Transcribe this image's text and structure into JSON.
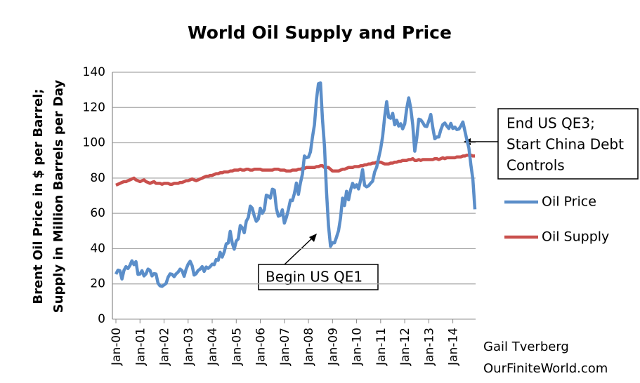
{
  "chart_data": {
    "type": "line",
    "title": "World Oil Supply and Price",
    "y_label": [
      "Brent Oil Price in $ per Barrel;",
      "Supply in Million Barrels per Day"
    ],
    "categories": [
      "Jan-00",
      null,
      null,
      null,
      null,
      null,
      null,
      null,
      null,
      null,
      null,
      null,
      "Jan-01",
      null,
      null,
      null,
      null,
      null,
      null,
      null,
      null,
      null,
      null,
      null,
      "Jan-02",
      null,
      null,
      null,
      null,
      null,
      null,
      null,
      null,
      null,
      null,
      null,
      "Jan-03",
      null,
      null,
      null,
      null,
      null,
      null,
      null,
      null,
      null,
      null,
      null,
      "Jan-04",
      null,
      null,
      null,
      null,
      null,
      null,
      null,
      null,
      null,
      null,
      null,
      "Jan-05",
      null,
      null,
      null,
      null,
      null,
      null,
      null,
      null,
      null,
      null,
      null,
      "Jan-06",
      null,
      null,
      null,
      null,
      null,
      null,
      null,
      null,
      null,
      null,
      null,
      "Jan-07",
      null,
      null,
      null,
      null,
      null,
      null,
      null,
      null,
      null,
      null,
      null,
      "Jan-08",
      null,
      null,
      null,
      null,
      null,
      null,
      null,
      null,
      null,
      null,
      null,
      "Jan-09",
      null,
      null,
      null,
      null,
      null,
      null,
      null,
      null,
      null,
      null,
      null,
      "Jan-10",
      null,
      null,
      null,
      null,
      null,
      null,
      null,
      null,
      null,
      null,
      null,
      "Jan-11",
      null,
      null,
      null,
      null,
      null,
      null,
      null,
      null,
      null,
      null,
      null,
      "Jan-12",
      null,
      null,
      null,
      null,
      null,
      null,
      null,
      null,
      null,
      null,
      null,
      "Jan-13",
      null,
      null,
      null,
      null,
      null,
      null,
      null,
      null,
      null,
      null,
      null,
      "Jan-14",
      null,
      null,
      null,
      null,
      null,
      null,
      null,
      null,
      null,
      null,
      null
    ],
    "series": [
      {
        "name": "Oil Price",
        "color": "#5b8ec9",
        "values": [
          25.5,
          27.8,
          27.5,
          22.8,
          27.6,
          29.8,
          28.7,
          30.5,
          33.1,
          30.9,
          32.6,
          25.4,
          25.6,
          27.5,
          24.5,
          25.7,
          28.4,
          27.7,
          24.5,
          25.8,
          25.6,
          20.5,
          18.9,
          18.6,
          19.4,
          20.3,
          23.7,
          25.7,
          25.4,
          24.1,
          25.7,
          26.7,
          28.4,
          27.5,
          24.3,
          28.3,
          31.2,
          32.8,
          30.3,
          25.0,
          25.8,
          27.6,
          28.4,
          29.8,
          27.1,
          29.6,
          28.8,
          29.8,
          31.2,
          30.9,
          33.8,
          33.4,
          37.9,
          35.2,
          38.2,
          42.7,
          43.2,
          49.8,
          43.1,
          39.7,
          44.3,
          45.5,
          53.1,
          51.9,
          49.0,
          55.6,
          57.6,
          64.1,
          62.9,
          58.5,
          55.5,
          56.8,
          62.9,
          60.0,
          62.1,
          70.3,
          69.8,
          68.6,
          73.7,
          73.2,
          62.8,
          58.4,
          58.9,
          62.0,
          54.5,
          57.8,
          62.1,
          67.5,
          67.2,
          71.3,
          77.2,
          70.8,
          77.1,
          82.3,
          92.5,
          91.5,
          91.9,
          94.8,
          103.3,
          110.2,
          124.6,
          133.5,
          133.9,
          113.4,
          98.0,
          72.7,
          53.0,
          41.3,
          43.4,
          43.3,
          46.5,
          50.2,
          57.3,
          68.6,
          64.4,
          72.5,
          67.7,
          73.2,
          77.0,
          74.7,
          76.2,
          73.8,
          78.8,
          84.8,
          75.9,
          75.0,
          75.6,
          77.1,
          78.2,
          83.5,
          86.1,
          91.4,
          96.5,
          103.7,
          114.6,
          123.3,
          114.5,
          113.9,
          116.7,
          110.2,
          112.8,
          109.5,
          110.8,
          107.9,
          110.7,
          119.3,
          125.5,
          119.8,
          110.3,
          95.2,
          102.6,
          113.4,
          113.0,
          111.5,
          109.5,
          109.2,
          112.3,
          116.1,
          108.5,
          102.3,
          103.3,
          103.3,
          107.4,
          110.3,
          111.2,
          109.5,
          108.1,
          111.0,
          108.1,
          108.9,
          107.5,
          107.8,
          109.5,
          111.8,
          106.8,
          101.6,
          97.1,
          87.4,
          79.4,
          62.3
        ]
      },
      {
        "name": "Oil Supply",
        "color": "#c9504d",
        "values": [
          76,
          76.5,
          77,
          77.5,
          78,
          78,
          78.5,
          79,
          79.5,
          80,
          79,
          78.5,
          78,
          78.5,
          79,
          78,
          77.5,
          77,
          77.5,
          78,
          77,
          77,
          77,
          76.5,
          77,
          77,
          77,
          76.5,
          76.5,
          77,
          77,
          77,
          77.5,
          77.5,
          78,
          78.5,
          78.5,
          79,
          79.5,
          79,
          78.5,
          79,
          79.5,
          80,
          80.5,
          81,
          81,
          81.5,
          81.5,
          82,
          82.5,
          82.5,
          83,
          83,
          83.5,
          83.5,
          83.5,
          84,
          84,
          84.5,
          84.5,
          84.5,
          85,
          84.5,
          84.5,
          85,
          85,
          84.5,
          84.5,
          85,
          85,
          85,
          85,
          84.5,
          84.5,
          84.5,
          84.5,
          84.5,
          84.5,
          85,
          85,
          85,
          84.5,
          84.5,
          84.5,
          84,
          84,
          84,
          84.5,
          84.5,
          84.5,
          85,
          85,
          85.5,
          85.5,
          86,
          86,
          86,
          86,
          86,
          86.5,
          86.5,
          87,
          87,
          86,
          86,
          86,
          85,
          84,
          84,
          84,
          84,
          84.5,
          85,
          85,
          85.5,
          86,
          86,
          86,
          86.5,
          86.5,
          86.5,
          87,
          87,
          87.5,
          87.5,
          88,
          88,
          88.5,
          88.5,
          89,
          89,
          89,
          88.5,
          88,
          88,
          88,
          88.5,
          88.5,
          89,
          89,
          89.5,
          89.5,
          90,
          90,
          90,
          90.5,
          90.5,
          91,
          90,
          90,
          90.5,
          90,
          90.5,
          90.5,
          90.5,
          90.5,
          90.5,
          90.5,
          91,
          91,
          90.5,
          91,
          91.5,
          91,
          91.5,
          91.5,
          91.5,
          91.5,
          91.5,
          92,
          92,
          92,
          92.5,
          92.5,
          93,
          93,
          93,
          92.5,
          92.5
        ]
      }
    ],
    "ylim": [
      0,
      140
    ],
    "yticks": [
      0,
      20,
      40,
      60,
      80,
      100,
      120,
      140
    ],
    "grid": true,
    "annotations": [
      {
        "lines": [
          "End US QE3;",
          "Start China Debt",
          "Controls"
        ]
      },
      {
        "lines": [
          "Begin US QE1"
        ]
      }
    ],
    "credit": [
      "Gail Tverberg",
      "OurFiniteWorld.com"
    ]
  }
}
